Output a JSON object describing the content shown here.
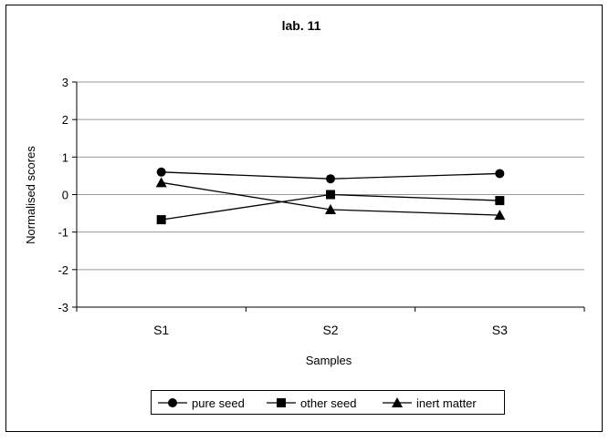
{
  "chart_data": {
    "type": "line",
    "title": "lab. 11",
    "xlabel": "Samples",
    "ylabel": "Normalised scores",
    "categories": [
      "S1",
      "S2",
      "S3"
    ],
    "ylim": [
      -3,
      3
    ],
    "yticks": [
      -3,
      -2,
      -1,
      0,
      1,
      2,
      3
    ],
    "grid": true,
    "legend_position": "bottom",
    "series": [
      {
        "name": "pure seed",
        "marker": "circle",
        "values": [
          0.6,
          0.42,
          0.56
        ]
      },
      {
        "name": "other seed",
        "marker": "square",
        "values": [
          -0.67,
          0.0,
          -0.16
        ]
      },
      {
        "name": "inert matter",
        "marker": "triangle",
        "values": [
          0.32,
          -0.4,
          -0.55
        ]
      }
    ]
  }
}
